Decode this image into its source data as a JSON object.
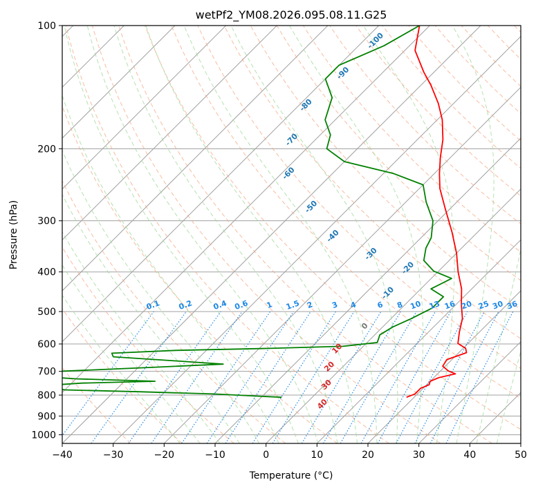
{
  "chart_data": {
    "type": "line",
    "title": "wetPf2_YM08.2026.095.08.11.G25",
    "xlabel": "Temperature (°C)",
    "ylabel": "Pressure (hPa)",
    "xlim": [
      -40,
      50
    ],
    "ylim_hpa": [
      1050,
      100
    ],
    "log_pressure_axis": true,
    "skewed_isotherms": true,
    "grid": true,
    "x_ticks": [
      "−40",
      "−30",
      "−20",
      "−10",
      "0",
      "10",
      "20",
      "30",
      "40",
      "50"
    ],
    "y_ticks": [
      "100",
      "200",
      "300",
      "400",
      "500",
      "600",
      "700",
      "800",
      "900",
      "1000"
    ],
    "series": [
      {
        "name": "",
        "color": "#ff0000",
        "points": [
          {
            "p": 810,
            "t": 18.5
          },
          {
            "p": 795,
            "t": 19.5
          },
          {
            "p": 770,
            "t": 19.5
          },
          {
            "p": 755,
            "t": 20.5
          },
          {
            "p": 740,
            "t": 20
          },
          {
            "p": 725,
            "t": 21
          },
          {
            "p": 710,
            "t": 23.5
          },
          {
            "p": 698,
            "t": 21.5
          },
          {
            "p": 680,
            "t": 19.5
          },
          {
            "p": 655,
            "t": 19
          },
          {
            "p": 630,
            "t": 21.5
          },
          {
            "p": 615,
            "t": 20.5
          },
          {
            "p": 598,
            "t": 18
          },
          {
            "p": 560,
            "t": 16
          },
          {
            "p": 520,
            "t": 14
          },
          {
            "p": 480,
            "t": 11
          },
          {
            "p": 440,
            "t": 8
          },
          {
            "p": 400,
            "t": 4
          },
          {
            "p": 360,
            "t": 0
          },
          {
            "p": 320,
            "t": -5
          },
          {
            "p": 280,
            "t": -11
          },
          {
            "p": 250,
            "t": -16
          },
          {
            "p": 230,
            "t": -19
          },
          {
            "p": 210,
            "t": -22
          },
          {
            "p": 190,
            "t": -25
          },
          {
            "p": 170,
            "t": -29
          },
          {
            "p": 155,
            "t": -33
          },
          {
            "p": 140,
            "t": -38
          },
          {
            "p": 130,
            "t": -42
          },
          {
            "p": 115,
            "t": -48
          },
          {
            "p": 100,
            "t": -52
          }
        ]
      },
      {
        "name": "",
        "color": "#008000",
        "points": [
          {
            "p": 810,
            "t": -6
          },
          {
            "p": 795,
            "t": -20
          },
          {
            "p": 785,
            "t": -35
          },
          {
            "p": 777,
            "t": -50
          },
          {
            "p": 760,
            "t": -56
          },
          {
            "p": 748,
            "t": -48
          },
          {
            "p": 740,
            "t": -34
          },
          {
            "p": 730,
            "t": -50
          },
          {
            "p": 715,
            "t": -62
          },
          {
            "p": 700,
            "t": -55
          },
          {
            "p": 685,
            "t": -38
          },
          {
            "p": 672,
            "t": -24
          },
          {
            "p": 660,
            "t": -34
          },
          {
            "p": 645,
            "t": -47
          },
          {
            "p": 632,
            "t": -48
          },
          {
            "p": 622,
            "t": -36
          },
          {
            "p": 615,
            "t": -18
          },
          {
            "p": 608,
            "t": -4
          },
          {
            "p": 595,
            "t": 2
          },
          {
            "p": 570,
            "t": 1
          },
          {
            "p": 545,
            "t": 2
          },
          {
            "p": 520,
            "t": 4
          },
          {
            "p": 490,
            "t": 6
          },
          {
            "p": 460,
            "t": 6
          },
          {
            "p": 440,
            "t": 2
          },
          {
            "p": 415,
            "t": 4
          },
          {
            "p": 398,
            "t": -1
          },
          {
            "p": 375,
            "t": -5
          },
          {
            "p": 350,
            "t": -7
          },
          {
            "p": 330,
            "t": -8
          },
          {
            "p": 300,
            "t": -11
          },
          {
            "p": 270,
            "t": -16
          },
          {
            "p": 245,
            "t": -20
          },
          {
            "p": 230,
            "t": -28
          },
          {
            "p": 215,
            "t": -40
          },
          {
            "p": 200,
            "t": -46
          },
          {
            "p": 185,
            "t": -48
          },
          {
            "p": 170,
            "t": -52
          },
          {
            "p": 150,
            "t": -55
          },
          {
            "p": 135,
            "t": -60
          },
          {
            "p": 125,
            "t": -60
          },
          {
            "p": 112,
            "t": -55
          },
          {
            "p": 100,
            "t": -52
          }
        ]
      }
    ],
    "dry_adiabat_labels": [
      "-100",
      "-90",
      "-80",
      "-70",
      "-60",
      "-50",
      "-40",
      "-30",
      "-20",
      "-10",
      "0",
      "10",
      "20",
      "30",
      "40"
    ],
    "mixing_ratio_labels": [
      "0.1",
      "0.2",
      "0.4",
      "0.6",
      "1",
      "1.5",
      "2",
      "3",
      "4",
      "6",
      "8",
      "10",
      "13",
      "16",
      "20",
      "25",
      "30",
      "36"
    ],
    "colors": {
      "temperature": "#ff0000",
      "dewpoint": "#008000",
      "isotherm": "#a0a0a0",
      "dry_adiabat": "#f4a582",
      "moist_adiabat": "#a1d99b",
      "mixing_ratio": "#1e88e5",
      "isobar": "#a0a0a0",
      "dry_label_cold": "#1f77b4",
      "dry_label_warm": "#d62728"
    }
  }
}
